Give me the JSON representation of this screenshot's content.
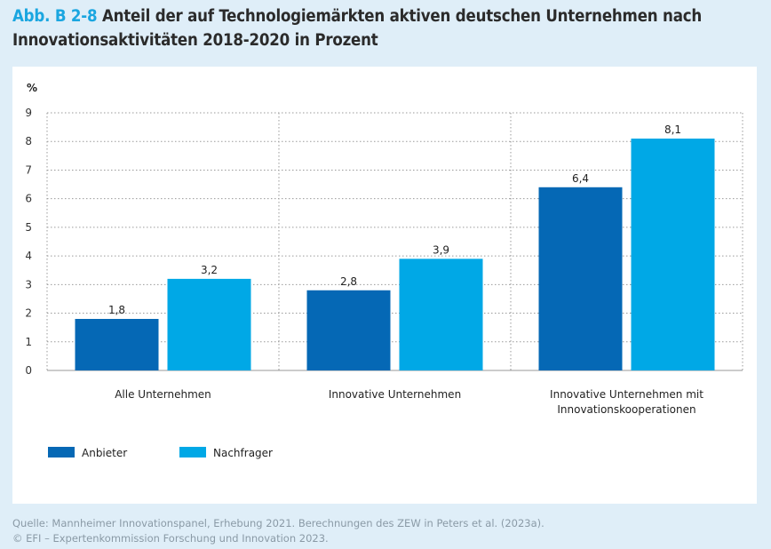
{
  "header": {
    "figure_label": "Abb. B 2-8",
    "title": "Anteil der auf Technologiemärkten aktiven deutschen Unternehmen nach Innovationsaktivitäten 2018-2020 in Prozent"
  },
  "chart_data": {
    "type": "bar",
    "ylabel": "%",
    "ylim": [
      0,
      9
    ],
    "yticks": [
      "0",
      "1",
      "2",
      "3",
      "4",
      "5",
      "6",
      "7",
      "8",
      "9"
    ],
    "grid": true,
    "categories": [
      [
        "Alle Unternehmen"
      ],
      [
        "Innovative Unternehmen"
      ],
      [
        "Innovative Unternehmen mit",
        "Innovationskooperationen"
      ]
    ],
    "series": [
      {
        "name": "Anbieter",
        "color": "#0568b5",
        "values": [
          1.8,
          2.8,
          6.4
        ],
        "labels": [
          "1,8",
          "2,8",
          "6,4"
        ]
      },
      {
        "name": "Nachfrager",
        "color": "#00a8e6",
        "values": [
          3.2,
          3.9,
          8.1
        ],
        "labels": [
          "3,2",
          "3,9",
          "8,1"
        ]
      }
    ],
    "legend_position": "bottom-left"
  },
  "footer": {
    "source": "Quelle: Mannheimer Innovationspanel, Erhebung 2021. Berechnungen des ZEW in Peters et al. (2023a).",
    "copyright": "© EFI – Expertenkommission Forschung und Innovation 2023."
  }
}
